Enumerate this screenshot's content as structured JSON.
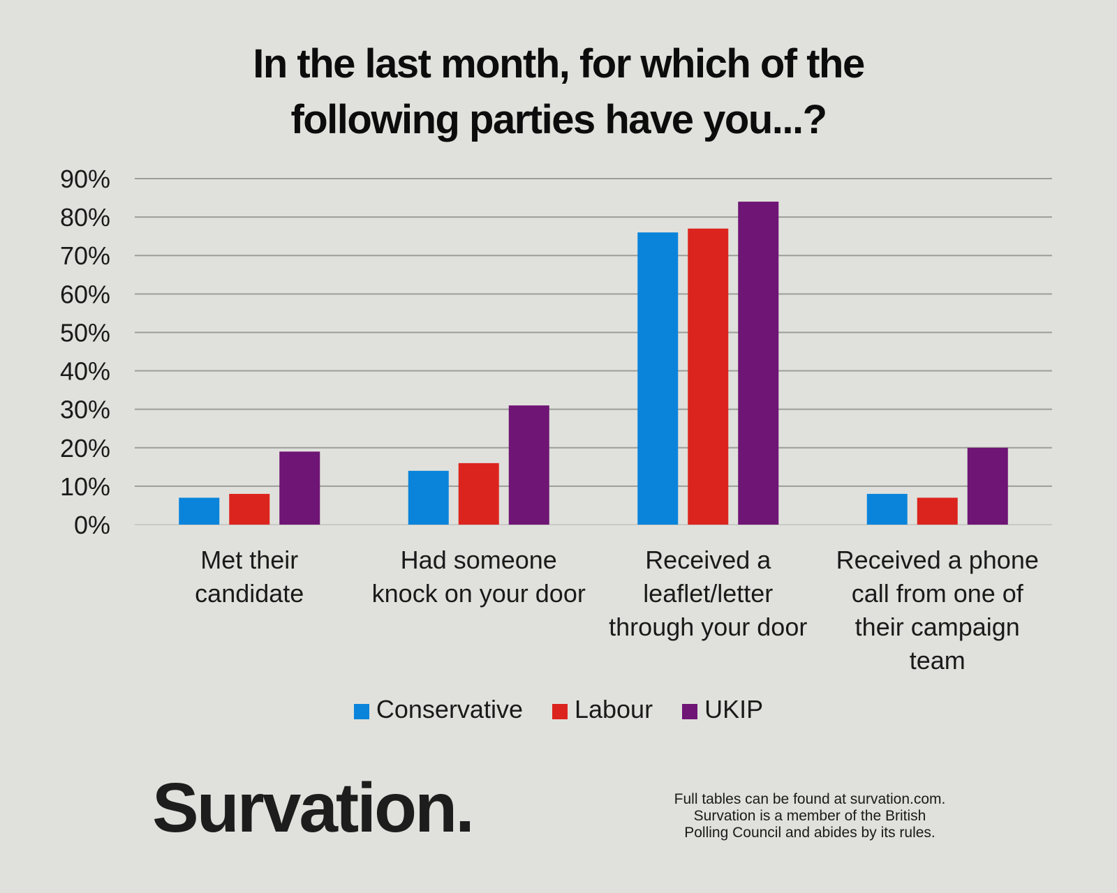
{
  "title_lines": [
    "In the last month, for which of the",
    "following parties have you...?"
  ],
  "legend": [
    {
      "name": "Conservative",
      "color": "#0a84db"
    },
    {
      "name": "Labour",
      "color": "#dc241f"
    },
    {
      "name": "UKIP",
      "color": "#6e1575"
    }
  ],
  "brand": "Survation.",
  "footnote_lines": [
    "Full tables can be found at survation.com.",
    "Survation is a member of the British",
    "Polling Council and abides by its rules."
  ],
  "chart_data": {
    "type": "bar",
    "categories": [
      [
        "Met their",
        "candidate"
      ],
      [
        "Had someone",
        "knock on your door"
      ],
      [
        "Received a",
        "leaflet/letter",
        "through your door"
      ],
      [
        "Received a phone",
        "call from one of",
        "their campaign",
        "team"
      ]
    ],
    "series": [
      {
        "name": "Conservative",
        "color": "#0a84db",
        "values": [
          7,
          14,
          76,
          8
        ]
      },
      {
        "name": "Labour",
        "color": "#dc241f",
        "values": [
          8,
          16,
          77,
          7
        ]
      },
      {
        "name": "UKIP",
        "color": "#6e1575",
        "values": [
          19,
          31,
          84,
          20
        ]
      }
    ],
    "ylim": [
      0,
      90
    ],
    "yticks": [
      "0%",
      "10%",
      "20%",
      "30%",
      "40%",
      "50%",
      "60%",
      "70%",
      "80%",
      "90%"
    ],
    "grid": true,
    "legend_position": "bottom"
  }
}
